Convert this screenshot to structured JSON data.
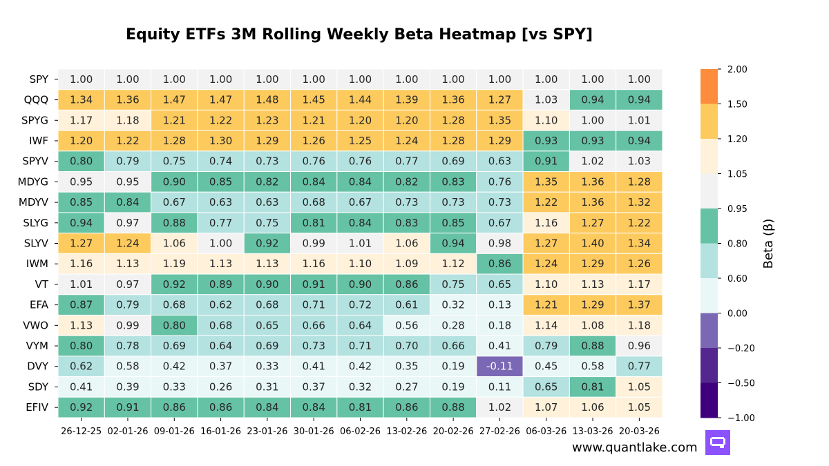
{
  "chart_data": {
    "type": "heatmap",
    "title": "Equity ETFs 3M Rolling Weekly Beta Heatmap [vs SPY]",
    "rows": [
      "SPY",
      "QQQ",
      "SPYG",
      "IWF",
      "SPYV",
      "MDYG",
      "MDYV",
      "SLYG",
      "SLYV",
      "IWM",
      "VT",
      "EFA",
      "VWO",
      "VYM",
      "DVY",
      "SDY",
      "EFIV"
    ],
    "columns": [
      "26-12-25",
      "02-01-26",
      "09-01-26",
      "16-01-26",
      "23-01-26",
      "30-01-26",
      "06-02-26",
      "13-02-26",
      "20-02-26",
      "27-02-26",
      "06-03-26",
      "13-03-26",
      "20-03-26"
    ],
    "values": [
      [
        1.0,
        1.0,
        1.0,
        1.0,
        1.0,
        1.0,
        1.0,
        1.0,
        1.0,
        1.0,
        1.0,
        1.0,
        1.0
      ],
      [
        1.34,
        1.36,
        1.47,
        1.47,
        1.48,
        1.45,
        1.44,
        1.39,
        1.36,
        1.27,
        1.03,
        0.94,
        0.94
      ],
      [
        1.17,
        1.18,
        1.21,
        1.22,
        1.23,
        1.21,
        1.2,
        1.2,
        1.28,
        1.35,
        1.1,
        1.0,
        1.01
      ],
      [
        1.2,
        1.22,
        1.28,
        1.3,
        1.29,
        1.26,
        1.25,
        1.24,
        1.28,
        1.29,
        0.93,
        0.93,
        0.94
      ],
      [
        0.8,
        0.79,
        0.75,
        0.74,
        0.73,
        0.76,
        0.76,
        0.77,
        0.69,
        0.63,
        0.91,
        1.02,
        1.03
      ],
      [
        0.95,
        0.95,
        0.9,
        0.85,
        0.82,
        0.84,
        0.84,
        0.82,
        0.83,
        0.76,
        1.35,
        1.36,
        1.28
      ],
      [
        0.85,
        0.84,
        0.67,
        0.63,
        0.63,
        0.68,
        0.67,
        0.73,
        0.73,
        0.73,
        1.22,
        1.36,
        1.32
      ],
      [
        0.94,
        0.97,
        0.88,
        0.77,
        0.75,
        0.81,
        0.84,
        0.83,
        0.85,
        0.67,
        1.16,
        1.27,
        1.22
      ],
      [
        1.27,
        1.24,
        1.06,
        1.0,
        0.92,
        0.99,
        1.01,
        1.06,
        0.94,
        0.98,
        1.27,
        1.4,
        1.34
      ],
      [
        1.16,
        1.13,
        1.19,
        1.13,
        1.13,
        1.16,
        1.1,
        1.09,
        1.12,
        0.86,
        1.24,
        1.29,
        1.26
      ],
      [
        1.01,
        0.97,
        0.92,
        0.89,
        0.9,
        0.91,
        0.9,
        0.86,
        0.75,
        0.65,
        1.1,
        1.13,
        1.17
      ],
      [
        0.87,
        0.79,
        0.68,
        0.62,
        0.68,
        0.71,
        0.72,
        0.61,
        0.32,
        0.13,
        1.21,
        1.29,
        1.37
      ],
      [
        1.13,
        0.99,
        0.8,
        0.68,
        0.65,
        0.66,
        0.64,
        0.56,
        0.28,
        0.18,
        1.14,
        1.08,
        1.18
      ],
      [
        0.8,
        0.78,
        0.69,
        0.64,
        0.69,
        0.73,
        0.71,
        0.7,
        0.66,
        0.41,
        0.79,
        0.88,
        0.96
      ],
      [
        0.62,
        0.58,
        0.42,
        0.37,
        0.33,
        0.41,
        0.42,
        0.35,
        0.19,
        -0.11,
        0.45,
        0.58,
        0.77
      ],
      [
        0.41,
        0.39,
        0.33,
        0.26,
        0.31,
        0.37,
        0.32,
        0.27,
        0.19,
        0.11,
        0.65,
        0.81,
        1.05
      ],
      [
        0.92,
        0.91,
        0.86,
        0.86,
        0.84,
        0.84,
        0.81,
        0.86,
        0.88,
        1.02,
        1.07,
        1.06,
        1.05
      ]
    ],
    "color_bins": [
      {
        "min": -1.0,
        "max": -0.5,
        "color": "#3f007d"
      },
      {
        "min": -0.5,
        "max": -0.2,
        "color": "#54278f"
      },
      {
        "min": -0.2,
        "max": 0.0,
        "color": "#7b68b5"
      },
      {
        "min": 0.0,
        "max": 0.6,
        "color": "#eaf7f7"
      },
      {
        "min": 0.6,
        "max": 0.8,
        "color": "#b3e2e0"
      },
      {
        "min": 0.8,
        "max": 0.95,
        "color": "#66c2a4"
      },
      {
        "min": 0.95,
        "max": 1.05,
        "color": "#f2f2f2"
      },
      {
        "min": 1.05,
        "max": 1.2,
        "color": "#fff1da"
      },
      {
        "min": 1.2,
        "max": 1.5,
        "color": "#fdca5e"
      },
      {
        "min": 1.5,
        "max": 2.0,
        "color": "#fd8d3c"
      }
    ],
    "colorbar": {
      "label": "Beta (β)",
      "ticks": [
        "2.00",
        "1.50",
        "1.20",
        "1.05",
        "0.95",
        "0.80",
        "0.60",
        "0.00",
        "−0.20",
        "−0.50",
        "−1.00"
      ]
    },
    "value_format": "2 decimals",
    "watermark": "www.quantlake.com",
    "logo_icon": "quantlake-logo-icon"
  }
}
